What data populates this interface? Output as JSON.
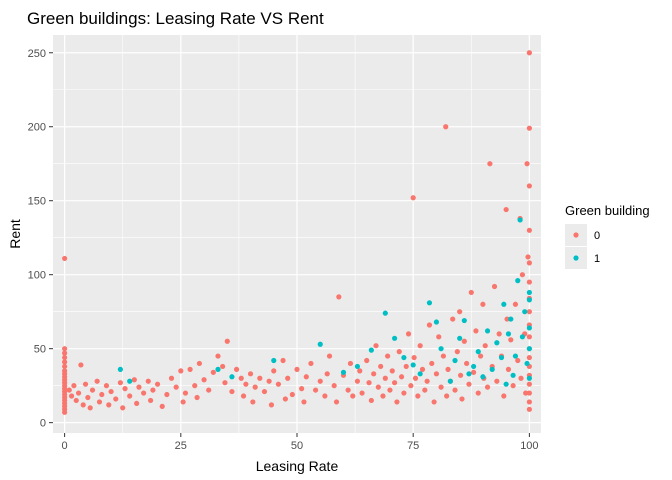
{
  "chart_data": {
    "type": "scatter",
    "title": "Green buildings: Leasing Rate VS Rent",
    "xlabel": "Leasing Rate",
    "ylabel": "Rent",
    "xlim": [
      -2.5,
      102.5
    ],
    "ylim": [
      -7,
      262
    ],
    "x_ticks": [
      0,
      25,
      50,
      75,
      100
    ],
    "y_ticks": [
      0,
      50,
      100,
      150,
      200,
      250
    ],
    "grid": true,
    "legend": {
      "title": "Green building",
      "placement": "right",
      "entries": [
        {
          "label": "0",
          "color": "#F8766D"
        },
        {
          "label": "1",
          "color": "#00BFC4"
        }
      ]
    },
    "series": [
      {
        "name": "0",
        "color": "#F8766D",
        "points": [
          [
            0,
            111
          ],
          [
            0,
            50
          ],
          [
            0,
            47
          ],
          [
            0,
            44
          ],
          [
            0,
            41
          ],
          [
            0,
            38
          ],
          [
            0,
            35
          ],
          [
            0,
            33
          ],
          [
            0,
            31
          ],
          [
            0,
            29
          ],
          [
            0,
            27
          ],
          [
            0,
            25
          ],
          [
            0,
            23
          ],
          [
            0,
            21
          ],
          [
            0,
            19
          ],
          [
            0,
            17
          ],
          [
            0,
            15
          ],
          [
            0,
            13
          ],
          [
            0,
            11
          ],
          [
            0,
            9
          ],
          [
            0,
            7
          ],
          [
            1,
            22
          ],
          [
            1.5,
            18
          ],
          [
            2,
            25
          ],
          [
            2.5,
            15
          ],
          [
            3,
            20
          ],
          [
            3.5,
            39
          ],
          [
            4,
            12
          ],
          [
            4.5,
            26
          ],
          [
            5,
            17
          ],
          [
            5.5,
            10
          ],
          [
            6,
            22
          ],
          [
            7,
            28
          ],
          [
            7.5,
            14
          ],
          [
            8,
            19
          ],
          [
            9,
            25
          ],
          [
            9.5,
            12
          ],
          [
            10,
            21
          ],
          [
            11,
            16
          ],
          [
            12,
            27
          ],
          [
            12.5,
            10
          ],
          [
            13,
            23
          ],
          [
            14,
            18
          ],
          [
            15,
            29
          ],
          [
            15.5,
            13
          ],
          [
            16,
            24
          ],
          [
            17,
            20
          ],
          [
            18,
            28
          ],
          [
            18.5,
            15
          ],
          [
            19,
            22
          ],
          [
            20,
            26
          ],
          [
            21,
            11
          ],
          [
            22,
            19
          ],
          [
            23,
            30
          ],
          [
            24,
            24
          ],
          [
            25,
            35
          ],
          [
            25.5,
            14
          ],
          [
            26,
            20
          ],
          [
            27,
            36
          ],
          [
            28,
            25
          ],
          [
            28.5,
            17
          ],
          [
            29,
            40
          ],
          [
            30,
            29
          ],
          [
            31,
            22
          ],
          [
            32,
            34
          ],
          [
            33,
            45
          ],
          [
            34,
            38
          ],
          [
            34.5,
            27
          ],
          [
            35,
            55
          ],
          [
            36,
            21
          ],
          [
            37,
            36
          ],
          [
            38,
            30
          ],
          [
            38.5,
            18
          ],
          [
            39,
            26
          ],
          [
            40,
            33
          ],
          [
            40.5,
            14
          ],
          [
            41,
            24
          ],
          [
            42,
            30
          ],
          [
            43,
            21
          ],
          [
            44,
            28
          ],
          [
            44.5,
            12
          ],
          [
            45,
            35
          ],
          [
            46,
            26
          ],
          [
            47,
            42
          ],
          [
            47.5,
            16
          ],
          [
            48,
            30
          ],
          [
            49,
            19
          ],
          [
            50,
            36
          ],
          [
            51,
            23
          ],
          [
            51.5,
            14
          ],
          [
            52,
            31
          ],
          [
            53,
            40
          ],
          [
            54,
            22
          ],
          [
            55,
            28
          ],
          [
            56,
            18
          ],
          [
            56.5,
            33
          ],
          [
            57,
            45
          ],
          [
            58,
            25
          ],
          [
            58.5,
            14
          ],
          [
            59,
            85
          ],
          [
            60,
            32
          ],
          [
            61,
            22
          ],
          [
            61.5,
            40
          ],
          [
            62,
            18
          ],
          [
            63,
            28
          ],
          [
            63.5,
            35
          ],
          [
            64,
            20
          ],
          [
            65,
            42
          ],
          [
            65.5,
            27
          ],
          [
            66,
            15
          ],
          [
            66.5,
            33
          ],
          [
            67,
            52
          ],
          [
            67.5,
            24
          ],
          [
            68,
            38
          ],
          [
            68.5,
            18
          ],
          [
            69,
            30
          ],
          [
            69.5,
            45
          ],
          [
            70,
            22
          ],
          [
            70.5,
            35
          ],
          [
            71,
            27
          ],
          [
            71.5,
            14
          ],
          [
            72,
            48
          ],
          [
            72.5,
            31
          ],
          [
            73,
            20
          ],
          [
            73.5,
            38
          ],
          [
            74,
            60
          ],
          [
            74.5,
            25
          ],
          [
            75,
            152
          ],
          [
            75.2,
            44
          ],
          [
            75.5,
            30
          ],
          [
            76,
            18
          ],
          [
            76.5,
            52
          ],
          [
            77,
            36
          ],
          [
            77.5,
            22
          ],
          [
            78,
            28
          ],
          [
            78.5,
            66
          ],
          [
            79,
            40
          ],
          [
            79.5,
            14
          ],
          [
            80,
            33
          ],
          [
            80.5,
            58
          ],
          [
            81,
            24
          ],
          [
            81.5,
            45
          ],
          [
            82,
            200
          ],
          [
            82.2,
            18
          ],
          [
            82.5,
            36
          ],
          [
            83,
            28
          ],
          [
            83.5,
            70
          ],
          [
            84,
            22
          ],
          [
            84.5,
            48
          ],
          [
            85,
            75
          ],
          [
            85.2,
            32
          ],
          [
            85.5,
            16
          ],
          [
            86,
            55
          ],
          [
            86.5,
            40
          ],
          [
            87,
            26
          ],
          [
            87.5,
            88
          ],
          [
            88,
            34
          ],
          [
            88.5,
            62
          ],
          [
            89,
            20
          ],
          [
            89.5,
            45
          ],
          [
            90,
            80
          ],
          [
            90.2,
            30
          ],
          [
            90.5,
            52
          ],
          [
            91,
            24
          ],
          [
            91.5,
            175
          ],
          [
            92,
            38
          ],
          [
            92.5,
            92
          ],
          [
            93,
            28
          ],
          [
            93.5,
            60
          ],
          [
            94,
            45
          ],
          [
            94.5,
            18
          ],
          [
            95,
            144
          ],
          [
            95.2,
            70
          ],
          [
            95.5,
            36
          ],
          [
            96,
            56
          ],
          [
            96.5,
            25
          ],
          [
            97,
            80
          ],
          [
            97.5,
            42
          ],
          [
            98,
            138
          ],
          [
            98.2,
            30
          ],
          [
            98.5,
            100
          ],
          [
            99,
            60
          ],
          [
            99.2,
            20
          ],
          [
            99.5,
            175
          ],
          [
            99.7,
            112
          ],
          [
            100,
            250
          ],
          [
            100,
            199
          ],
          [
            100,
            160
          ],
          [
            100,
            130
          ],
          [
            100,
            108
          ],
          [
            100,
            95
          ],
          [
            100,
            84
          ],
          [
            100,
            75
          ],
          [
            100,
            66
          ],
          [
            100,
            58
          ],
          [
            100,
            50
          ],
          [
            100,
            44
          ],
          [
            100,
            38
          ],
          [
            100,
            32
          ],
          [
            100,
            26
          ],
          [
            100,
            20
          ],
          [
            100,
            14
          ],
          [
            100,
            9
          ]
        ]
      },
      {
        "name": "1",
        "color": "#00BFC4",
        "points": [
          [
            12,
            36
          ],
          [
            14,
            28
          ],
          [
            33,
            36
          ],
          [
            36,
            31
          ],
          [
            45,
            42
          ],
          [
            55,
            53
          ],
          [
            60,
            34
          ],
          [
            63,
            38
          ],
          [
            66,
            49
          ],
          [
            69,
            74
          ],
          [
            71,
            57
          ],
          [
            73,
            44
          ],
          [
            75,
            39
          ],
          [
            76.5,
            33
          ],
          [
            78.5,
            81
          ],
          [
            80,
            68
          ],
          [
            81,
            50
          ],
          [
            83,
            28
          ],
          [
            84,
            42
          ],
          [
            85,
            57
          ],
          [
            86,
            69
          ],
          [
            87,
            33
          ],
          [
            88,
            38
          ],
          [
            89,
            48
          ],
          [
            90,
            31
          ],
          [
            91,
            62
          ],
          [
            92,
            36
          ],
          [
            93,
            54
          ],
          [
            94,
            44
          ],
          [
            94.5,
            80
          ],
          [
            95,
            26
          ],
          [
            95.5,
            60
          ],
          [
            96,
            70
          ],
          [
            96.5,
            32
          ],
          [
            97,
            45
          ],
          [
            97.5,
            96
          ],
          [
            98,
            137
          ],
          [
            98.5,
            58
          ],
          [
            99,
            75
          ],
          [
            99.5,
            40
          ],
          [
            100,
            88
          ],
          [
            100,
            83
          ],
          [
            100,
            64
          ],
          [
            100,
            50
          ],
          [
            100,
            30
          ]
        ]
      }
    ]
  }
}
